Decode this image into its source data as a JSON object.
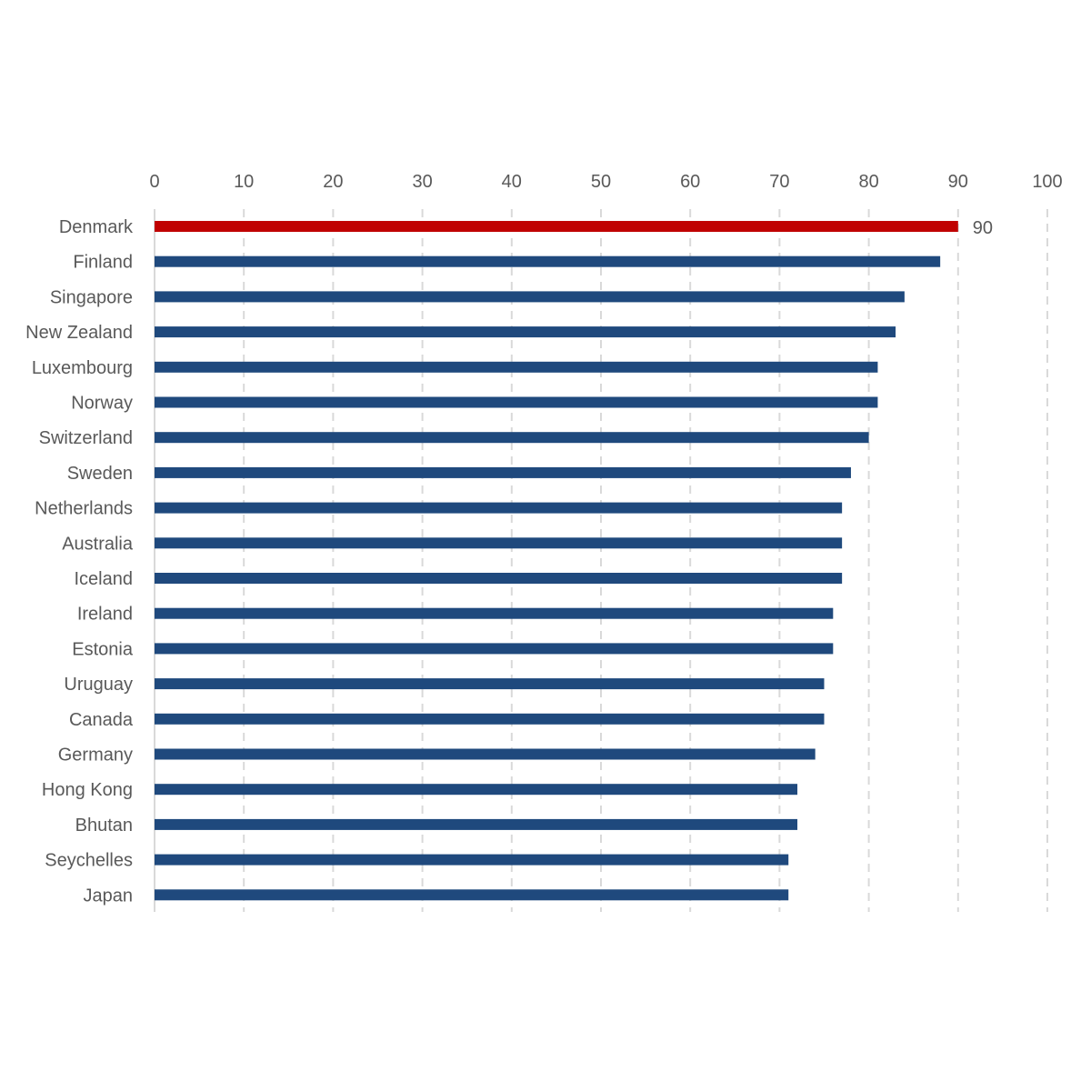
{
  "chart_data": {
    "type": "bar",
    "orientation": "horizontal",
    "categories": [
      "Denmark",
      "Finland",
      "Singapore",
      "New Zealand",
      "Luxembourg",
      "Norway",
      "Switzerland",
      "Sweden",
      "Netherlands",
      "Australia",
      "Iceland",
      "Ireland",
      "Estonia",
      "Uruguay",
      "Canada",
      "Germany",
      "Hong Kong",
      "Bhutan",
      "Seychelles",
      "Japan"
    ],
    "values": [
      90,
      88,
      84,
      83,
      81,
      81,
      80,
      78,
      77,
      77,
      77,
      76,
      76,
      75,
      75,
      74,
      72,
      72,
      71,
      71
    ],
    "highlight_index": 0,
    "data_labels": [
      {
        "index": 0,
        "text": "90"
      }
    ],
    "xlim": [
      0,
      100
    ],
    "xticks": [
      0,
      10,
      20,
      30,
      40,
      50,
      60,
      70,
      80,
      90,
      100
    ],
    "x_axis_position": "top",
    "grid": "vertical dashed",
    "title": "",
    "xlabel": "",
    "ylabel": "",
    "colors": {
      "bar": "#1f497d",
      "highlight": "#c00000",
      "grid": "#d9d9d9",
      "text": "#595959"
    }
  }
}
